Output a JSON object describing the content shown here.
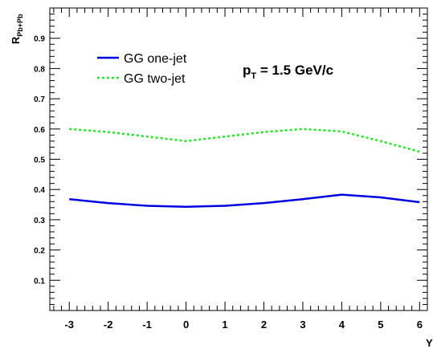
{
  "chart_data": {
    "type": "line",
    "x": [
      -3,
      -2,
      -1,
      0,
      1,
      2,
      3,
      4,
      5,
      6
    ],
    "xlim": [
      -3.5,
      6.2
    ],
    "ylim": [
      0,
      1
    ],
    "xticks": [
      "-3",
      "-2",
      "-1",
      "0",
      "1",
      "2",
      "3",
      "4",
      "5",
      "6"
    ],
    "yticks": [
      "0.1",
      "0.2",
      "0.3",
      "0.4",
      "0.5",
      "0.6",
      "0.7",
      "0.8",
      "0.9"
    ],
    "xlabel": "Y",
    "ylabel": {
      "main": "R",
      "sub": "Pb+Pb"
    },
    "annotation": {
      "main": "p",
      "sub": "T",
      "rest": " = 1.5 GeV/c"
    },
    "legend_position": "top-left",
    "grid": false,
    "series": [
      {
        "name": "GG one-jet",
        "color": "#0000e0",
        "style": "solid",
        "values": [
          0.368,
          0.355,
          0.346,
          0.343,
          0.346,
          0.355,
          0.368,
          0.383,
          0.374,
          0.358
        ]
      },
      {
        "name": "GG two-jet",
        "color": "#22e622",
        "style": "dotted",
        "values": [
          0.6,
          0.59,
          0.575,
          0.56,
          0.575,
          0.59,
          0.6,
          0.592,
          0.56,
          0.525
        ]
      }
    ]
  }
}
